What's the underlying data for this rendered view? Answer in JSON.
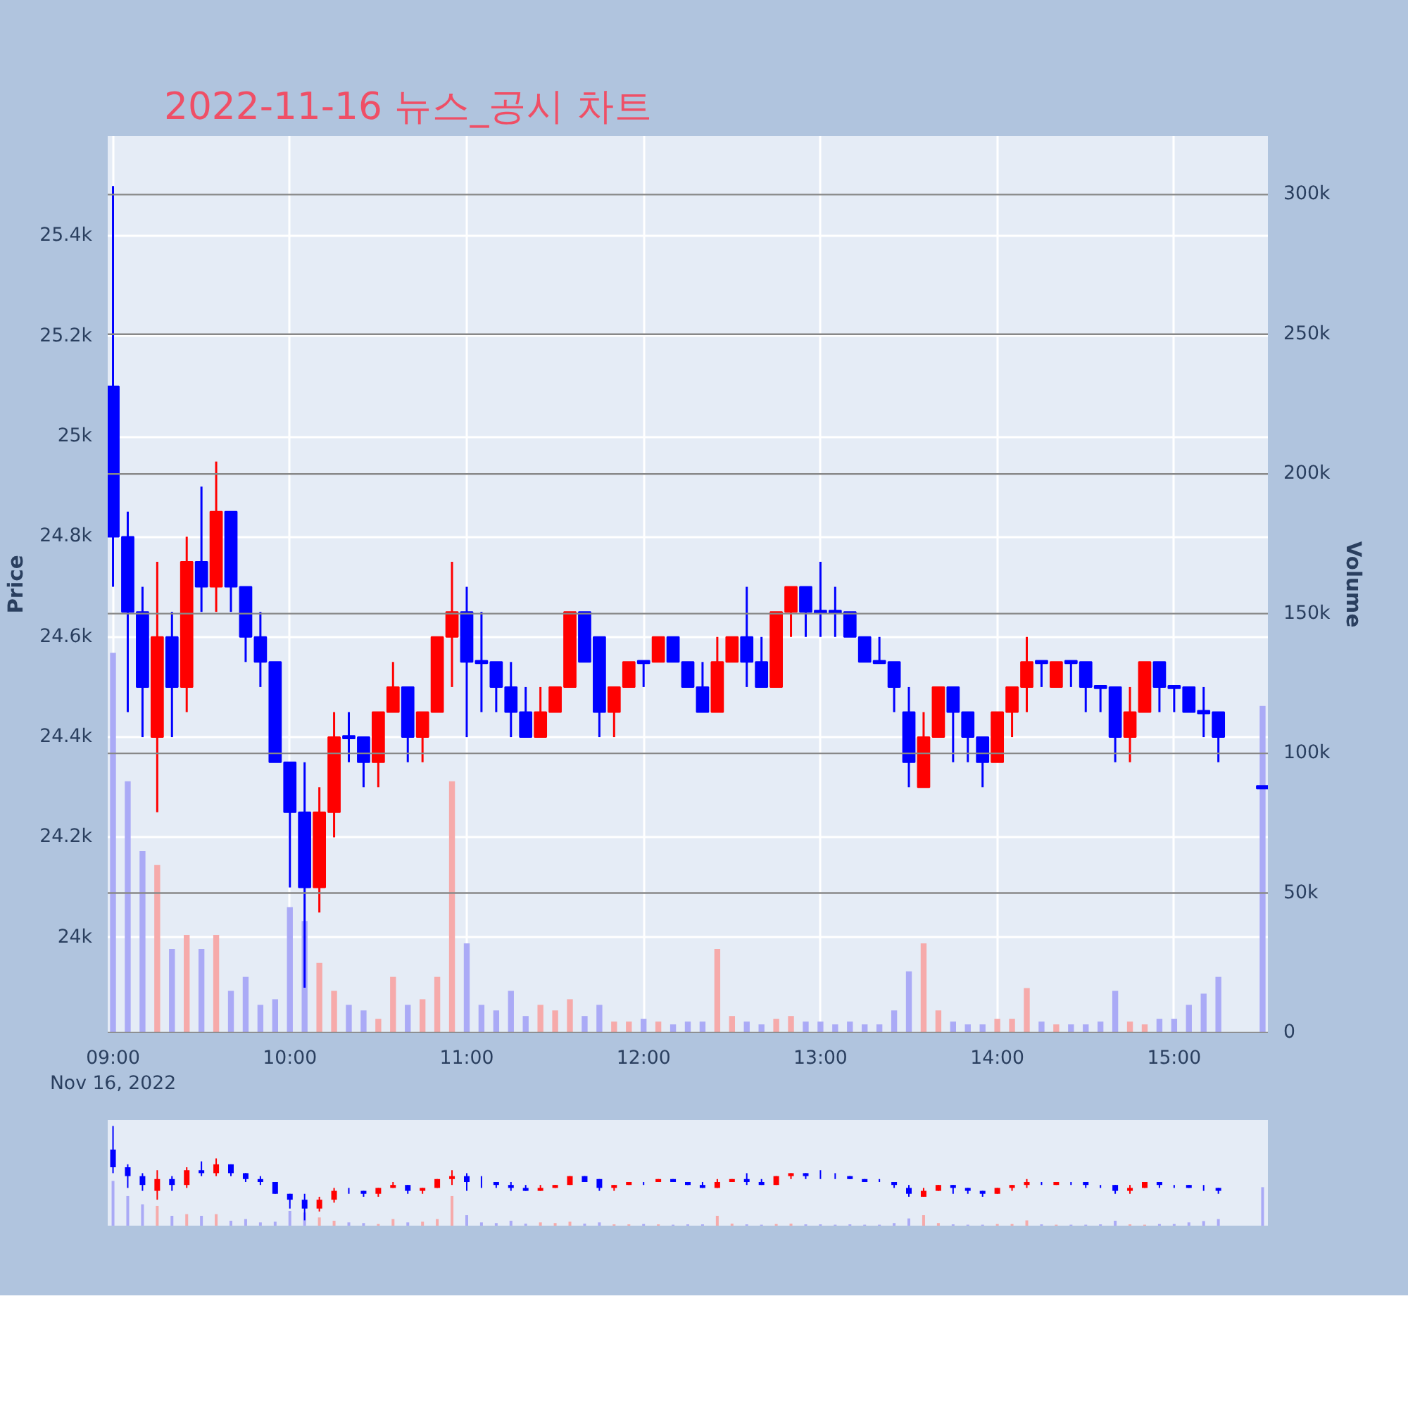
{
  "chart_data": {
    "type": "candlestick",
    "title": "2022-11-16 뉴스_공시 차트",
    "x": [
      9,
      9.0833,
      9.1667,
      9.25,
      9.3333,
      9.4167,
      9.5,
      9.5833,
      9.6667,
      9.75,
      9.8333,
      9.9167,
      10,
      10.0833,
      10.1667,
      10.25,
      10.3333,
      10.4167,
      10.5,
      10.5833,
      10.6667,
      10.75,
      10.8333,
      10.9167,
      11,
      11.0833,
      11.1667,
      11.25,
      11.3333,
      11.4167,
      11.5,
      11.5833,
      11.6667,
      11.75,
      11.8333,
      11.9167,
      12,
      12.0833,
      12.1667,
      12.25,
      12.3333,
      12.4167,
      12.5,
      12.5833,
      12.6667,
      12.75,
      12.8333,
      12.9167,
      13,
      13.0833,
      13.1667,
      13.25,
      13.3333,
      13.4167,
      13.5,
      13.5833,
      13.6667,
      13.75,
      13.8333,
      13.9167,
      14,
      14.0833,
      14.1667,
      14.25,
      14.3333,
      14.4167,
      14.5,
      14.5833,
      14.6667,
      14.75,
      14.8333,
      14.9167,
      15,
      15.0833,
      15.1667,
      15.25,
      15.5
    ],
    "series": [
      {
        "type": "candlestick",
        "ohlc": [
          [
            25100,
            25500,
            24700,
            24800
          ],
          [
            24800,
            24850,
            24450,
            24650
          ],
          [
            24650,
            24700,
            24400,
            24500
          ],
          [
            24400,
            24750,
            24250,
            24600
          ],
          [
            24600,
            24650,
            24400,
            24500
          ],
          [
            24500,
            24800,
            24450,
            24750
          ],
          [
            24750,
            24900,
            24650,
            24700
          ],
          [
            24700,
            24950,
            24650,
            24850
          ],
          [
            24850,
            24850,
            24650,
            24700
          ],
          [
            24700,
            24700,
            24550,
            24600
          ],
          [
            24600,
            24650,
            24500,
            24550
          ],
          [
            24550,
            24550,
            24350,
            24350
          ],
          [
            24350,
            24350,
            24100,
            24250
          ],
          [
            24250,
            24350,
            23900,
            24100
          ],
          [
            24100,
            24300,
            24050,
            24250
          ],
          [
            24250,
            24450,
            24200,
            24400
          ],
          [
            24400,
            24450,
            24350,
            24400
          ],
          [
            24400,
            24400,
            24300,
            24350
          ],
          [
            24350,
            24450,
            24300,
            24450
          ],
          [
            24450,
            24550,
            24450,
            24500
          ],
          [
            24500,
            24500,
            24350,
            24400
          ],
          [
            24400,
            24450,
            24350,
            24450
          ],
          [
            24450,
            24600,
            24450,
            24600
          ],
          [
            24600,
            24750,
            24500,
            24650
          ],
          [
            24650,
            24700,
            24400,
            24550
          ],
          [
            24550,
            24650,
            24450,
            24550
          ],
          [
            24550,
            24550,
            24450,
            24500
          ],
          [
            24500,
            24550,
            24400,
            24450
          ],
          [
            24450,
            24500,
            24400,
            24400
          ],
          [
            24400,
            24500,
            24400,
            24450
          ],
          [
            24450,
            24500,
            24450,
            24500
          ],
          [
            24500,
            24650,
            24500,
            24650
          ],
          [
            24650,
            24650,
            24550,
            24550
          ],
          [
            24600,
            24600,
            24400,
            24450
          ],
          [
            24450,
            24500,
            24400,
            24500
          ],
          [
            24500,
            24550,
            24500,
            24550
          ],
          [
            24550,
            24550,
            24500,
            24550
          ],
          [
            24550,
            24600,
            24550,
            24600
          ],
          [
            24600,
            24600,
            24550,
            24550
          ],
          [
            24550,
            24550,
            24500,
            24500
          ],
          [
            24500,
            24550,
            24450,
            24450
          ],
          [
            24450,
            24600,
            24450,
            24550
          ],
          [
            24550,
            24600,
            24550,
            24600
          ],
          [
            24600,
            24700,
            24500,
            24550
          ],
          [
            24550,
            24600,
            24500,
            24500
          ],
          [
            24500,
            24650,
            24500,
            24650
          ],
          [
            24650,
            24700,
            24600,
            24700
          ],
          [
            24700,
            24700,
            24600,
            24650
          ],
          [
            24650,
            24750,
            24600,
            24650
          ],
          [
            24650,
            24700,
            24600,
            24650
          ],
          [
            24650,
            24650,
            24600,
            24600
          ],
          [
            24600,
            24600,
            24550,
            24550
          ],
          [
            24550,
            24600,
            24550,
            24550
          ],
          [
            24550,
            24550,
            24450,
            24500
          ],
          [
            24450,
            24500,
            24300,
            24350
          ],
          [
            24300,
            24450,
            24300,
            24400
          ],
          [
            24400,
            24500,
            24400,
            24500
          ],
          [
            24500,
            24500,
            24350,
            24450
          ],
          [
            24450,
            24450,
            24350,
            24400
          ],
          [
            24400,
            24400,
            24300,
            24350
          ],
          [
            24350,
            24450,
            24350,
            24450
          ],
          [
            24450,
            24500,
            24400,
            24500
          ],
          [
            24500,
            24600,
            24450,
            24550
          ],
          [
            24550,
            24550,
            24500,
            24550
          ],
          [
            24500,
            24550,
            24500,
            24550
          ],
          [
            24550,
            24550,
            24500,
            24550
          ],
          [
            24550,
            24550,
            24450,
            24500
          ],
          [
            24500,
            24500,
            24450,
            24500
          ],
          [
            24500,
            24500,
            24350,
            24400
          ],
          [
            24400,
            24500,
            24350,
            24450
          ],
          [
            24450,
            24550,
            24450,
            24550
          ],
          [
            24550,
            24550,
            24450,
            24500
          ],
          [
            24500,
            24500,
            24450,
            24500
          ],
          [
            24500,
            24500,
            24450,
            24450
          ],
          [
            24450,
            24500,
            24400,
            24450
          ],
          [
            24450,
            24450,
            24350,
            24400
          ],
          [
            24300,
            24300,
            24300,
            24300
          ]
        ],
        "colors": [
          "#0000ff",
          "#0000ff",
          "#0000ff",
          "#ff0000",
          "#0000ff",
          "#ff0000",
          "#0000ff",
          "#ff0000",
          "#0000ff",
          "#0000ff",
          "#0000ff",
          "#0000ff",
          "#0000ff",
          "#0000ff",
          "#ff0000",
          "#ff0000",
          "#0000ff",
          "#0000ff",
          "#ff0000",
          "#ff0000",
          "#0000ff",
          "#ff0000",
          "#ff0000",
          "#ff0000",
          "#0000ff",
          "#0000ff",
          "#0000ff",
          "#0000ff",
          "#0000ff",
          "#ff0000",
          "#ff0000",
          "#ff0000",
          "#0000ff",
          "#0000ff",
          "#ff0000",
          "#ff0000",
          "#0000ff",
          "#ff0000",
          "#0000ff",
          "#0000ff",
          "#0000ff",
          "#ff0000",
          "#ff0000",
          "#0000ff",
          "#0000ff",
          "#ff0000",
          "#ff0000",
          "#0000ff",
          "#0000ff",
          "#0000ff",
          "#0000ff",
          "#0000ff",
          "#0000ff",
          "#0000ff",
          "#0000ff",
          "#ff0000",
          "#ff0000",
          "#0000ff",
          "#0000ff",
          "#0000ff",
          "#ff0000",
          "#ff0000",
          "#ff0000",
          "#0000ff",
          "#ff0000",
          "#0000ff",
          "#0000ff",
          "#0000ff",
          "#0000ff",
          "#ff0000",
          "#ff0000",
          "#0000ff",
          "#0000ff",
          "#0000ff",
          "#0000ff",
          "#0000ff",
          "#0000ff"
        ]
      },
      {
        "type": "bar",
        "axis": "y2",
        "values": [
          136000,
          90000,
          65000,
          60000,
          30000,
          35000,
          30000,
          35000,
          15000,
          20000,
          10000,
          12000,
          45000,
          40000,
          25000,
          15000,
          10000,
          8000,
          5000,
          20000,
          10000,
          12000,
          20000,
          90000,
          32000,
          10000,
          8000,
          15000,
          6000,
          10000,
          8000,
          12000,
          6000,
          10000,
          4000,
          4000,
          5000,
          4000,
          3000,
          4000,
          4000,
          30000,
          6000,
          4000,
          3000,
          5000,
          6000,
          4000,
          4000,
          3000,
          4000,
          3000,
          3000,
          8000,
          22000,
          32000,
          8000,
          4000,
          3000,
          3000,
          5000,
          5000,
          16000,
          4000,
          3000,
          3000,
          3000,
          4000,
          15000,
          4000,
          3000,
          5000,
          5000,
          10000,
          14000,
          20000,
          117000
        ],
        "colors": [
          "#aaaaf6",
          "#aaaaf6",
          "#aaaaf6",
          "#f6aaaa",
          "#aaaaf6",
          "#f6aaaa",
          "#aaaaf6",
          "#f6aaaa",
          "#aaaaf6",
          "#aaaaf6",
          "#aaaaf6",
          "#aaaaf6",
          "#aaaaf6",
          "#aaaaf6",
          "#f6aaaa",
          "#f6aaaa",
          "#aaaaf6",
          "#aaaaf6",
          "#f6aaaa",
          "#f6aaaa",
          "#aaaaf6",
          "#f6aaaa",
          "#f6aaaa",
          "#f6aaaa",
          "#aaaaf6",
          "#aaaaf6",
          "#aaaaf6",
          "#aaaaf6",
          "#aaaaf6",
          "#f6aaaa",
          "#f6aaaa",
          "#f6aaaa",
          "#aaaaf6",
          "#aaaaf6",
          "#f6aaaa",
          "#f6aaaa",
          "#aaaaf6",
          "#f6aaaa",
          "#aaaaf6",
          "#aaaaf6",
          "#aaaaf6",
          "#f6aaaa",
          "#f6aaaa",
          "#aaaaf6",
          "#aaaaf6",
          "#f6aaaa",
          "#f6aaaa",
          "#aaaaf6",
          "#aaaaf6",
          "#aaaaf6",
          "#aaaaf6",
          "#aaaaf6",
          "#aaaaf6",
          "#aaaaf6",
          "#aaaaf6",
          "#f6aaaa",
          "#f6aaaa",
          "#aaaaf6",
          "#aaaaf6",
          "#aaaaf6",
          "#f6aaaa",
          "#f6aaaa",
          "#f6aaaa",
          "#aaaaf6",
          "#f6aaaa",
          "#aaaaf6",
          "#aaaaf6",
          "#aaaaf6",
          "#aaaaf6",
          "#f6aaaa",
          "#f6aaaa",
          "#aaaaf6",
          "#aaaaf6",
          "#aaaaf6",
          "#aaaaf6",
          "#aaaaf6",
          "#aaaaf6"
        ]
      }
    ],
    "xlim": [
      8.97,
      15.53
    ],
    "xticks": [
      {
        "value": 9,
        "label": "09:00"
      },
      {
        "value": 10,
        "label": "10:00"
      },
      {
        "value": 11,
        "label": "11:00"
      },
      {
        "value": 12,
        "label": "12:00"
      },
      {
        "value": 13,
        "label": "13:00"
      },
      {
        "value": 14,
        "label": "14:00"
      },
      {
        "value": 15,
        "label": "15:00"
      }
    ],
    "ylim": [
      23810,
      25600
    ],
    "yticks": [
      {
        "value": 24000,
        "label": "24k"
      },
      {
        "value": 24200,
        "label": "24.2k"
      },
      {
        "value": 24400,
        "label": "24.4k"
      },
      {
        "value": 24600,
        "label": "24.6k"
      },
      {
        "value": 24800,
        "label": "24.8k"
      },
      {
        "value": 25000,
        "label": "25k"
      },
      {
        "value": 25200,
        "label": "25.2k"
      },
      {
        "value": 25400,
        "label": "25.4k"
      }
    ],
    "y2lim": [
      0,
      321000
    ],
    "y2ticks": [
      0,
      {
        "value": 50000,
        "label": "50k"
      },
      {
        "value": 100000,
        "label": "100k"
      },
      {
        "value": 150000,
        "label": "150k"
      },
      {
        "value": 200000,
        "label": "200k"
      },
      {
        "value": 250000,
        "label": "250k"
      },
      {
        "value": 300000,
        "label": "300k"
      }
    ],
    "ylabel": "Price",
    "y2label": "Volume",
    "grid": true,
    "annotations": [
      "Nov 16, 2022"
    ]
  }
}
